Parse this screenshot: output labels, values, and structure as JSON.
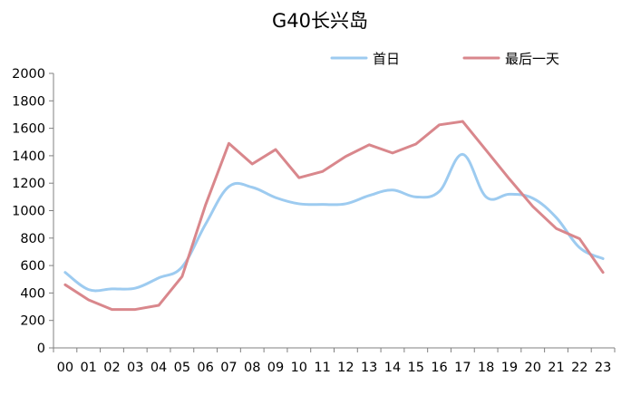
{
  "chart_data": {
    "type": "line",
    "title": "G40长兴岛",
    "xlabel": "",
    "ylabel": "",
    "x": [
      "00",
      "01",
      "02",
      "03",
      "04",
      "05",
      "06",
      "07",
      "08",
      "09",
      "10",
      "11",
      "12",
      "13",
      "14",
      "15",
      "16",
      "17",
      "18",
      "19",
      "20",
      "21",
      "22",
      "23"
    ],
    "ylim": [
      0,
      2000
    ],
    "yticks": [
      0,
      200,
      400,
      600,
      800,
      1000,
      1200,
      1400,
      1600,
      1800,
      2000
    ],
    "grid": false,
    "legend_position": "top-right",
    "series": [
      {
        "name": "首日",
        "color": "#9DCBF0",
        "smooth": true,
        "values": [
          550,
          425,
          430,
          435,
          510,
          590,
          900,
          1175,
          1170,
          1095,
          1050,
          1045,
          1050,
          1110,
          1150,
          1100,
          1140,
          1410,
          1100,
          1120,
          1090,
          950,
          730,
          650
        ]
      },
      {
        "name": "最后一天",
        "color": "#D9878C",
        "smooth": false,
        "values": [
          460,
          350,
          280,
          280,
          310,
          520,
          1040,
          1490,
          1340,
          1445,
          1240,
          1285,
          1395,
          1480,
          1420,
          1485,
          1625,
          1650,
          1440,
          1230,
          1030,
          870,
          795,
          550
        ]
      }
    ]
  }
}
